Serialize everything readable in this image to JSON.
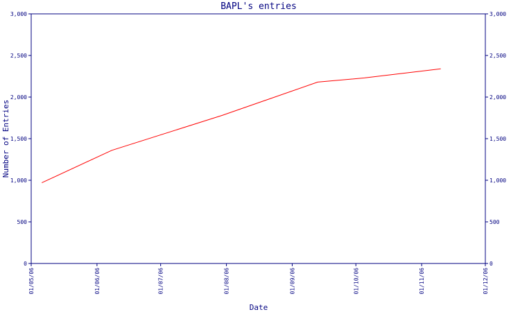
{
  "chart_data": {
    "type": "line",
    "title": "BAPL's entries",
    "xlabel": "Date",
    "ylabel": "Number of Entries",
    "ylim": [
      0,
      3000
    ],
    "y_ticks": [
      0,
      500,
      1000,
      1500,
      2000,
      2500,
      3000
    ],
    "y_tick_labels": [
      "0",
      "500",
      "1,000",
      "1,500",
      "2,000",
      "2,500",
      "3,000"
    ],
    "y_right_tick_labels": [
      "0",
      "500",
      "1,000",
      "1,500",
      "2,000",
      "2,500",
      "3,000"
    ],
    "x_range": [
      "2006-05-01",
      "2006-12-01"
    ],
    "x_ticks": [
      "2006-05-01",
      "2006-06-01",
      "2006-07-01",
      "2006-08-01",
      "2006-09-01",
      "2006-10-01",
      "2006-11-01",
      "2006-12-01"
    ],
    "x_tick_labels": [
      "01/05/06",
      "01/06/06",
      "01/07/06",
      "01/08/06",
      "01/09/06",
      "01/10/06",
      "01/11/06",
      "01/12/06"
    ],
    "grid": false,
    "series": [
      {
        "color": "#ff0000",
        "x": [
          "2006-05-06",
          "2006-06-08",
          "2006-07-30",
          "2006-09-13",
          "2006-10-05",
          "2006-11-10"
        ],
        "y": [
          970,
          1360,
          1780,
          2180,
          2230,
          2340
        ]
      }
    ]
  }
}
